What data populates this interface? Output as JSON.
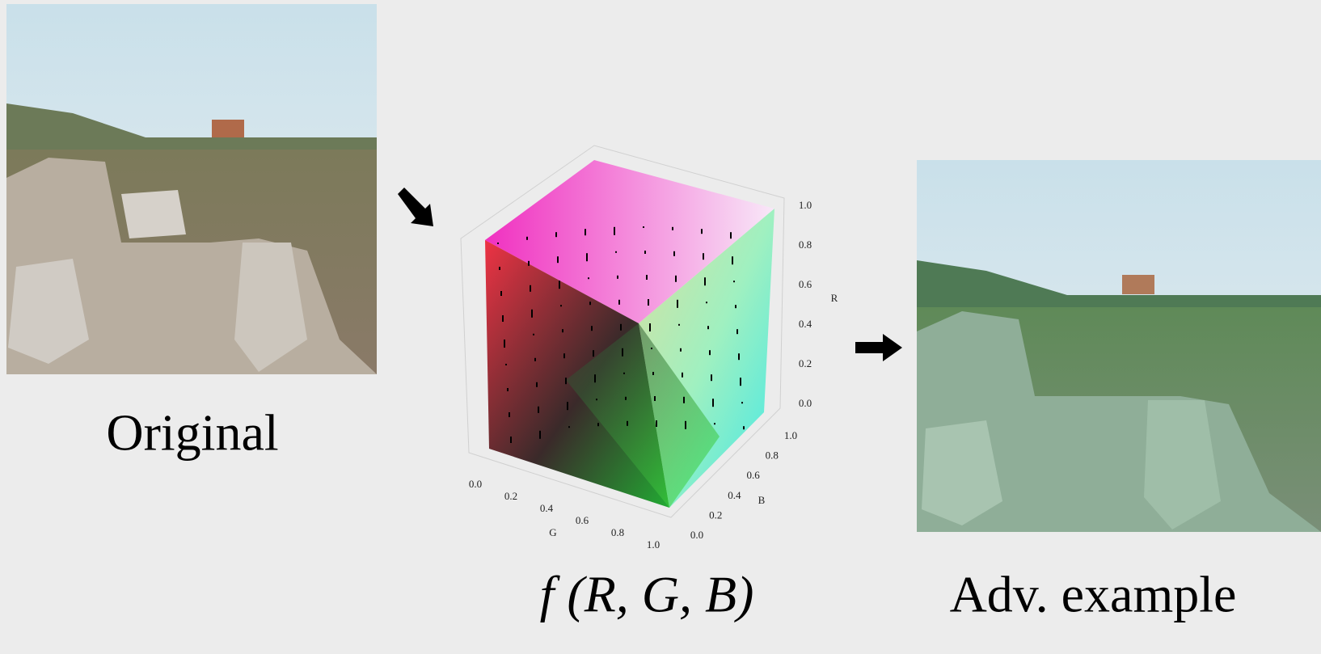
{
  "left_panel": {
    "caption": "Original"
  },
  "middle_panel": {
    "caption": "f (R, G, B)",
    "cube": {
      "r_axis": {
        "label": "R",
        "ticks": [
          "0.0",
          "0.2",
          "0.4",
          "0.6",
          "0.8",
          "1.0"
        ]
      },
      "b_axis": {
        "label": "B",
        "ticks": [
          "0.0",
          "0.2",
          "0.4",
          "0.6",
          "0.8",
          "1.0"
        ]
      },
      "g_axis": {
        "label": "G",
        "ticks": [
          "0.0",
          "0.2",
          "0.4",
          "0.6",
          "0.8",
          "1.0"
        ]
      }
    }
  },
  "right_panel": {
    "caption": "Adv. example"
  }
}
